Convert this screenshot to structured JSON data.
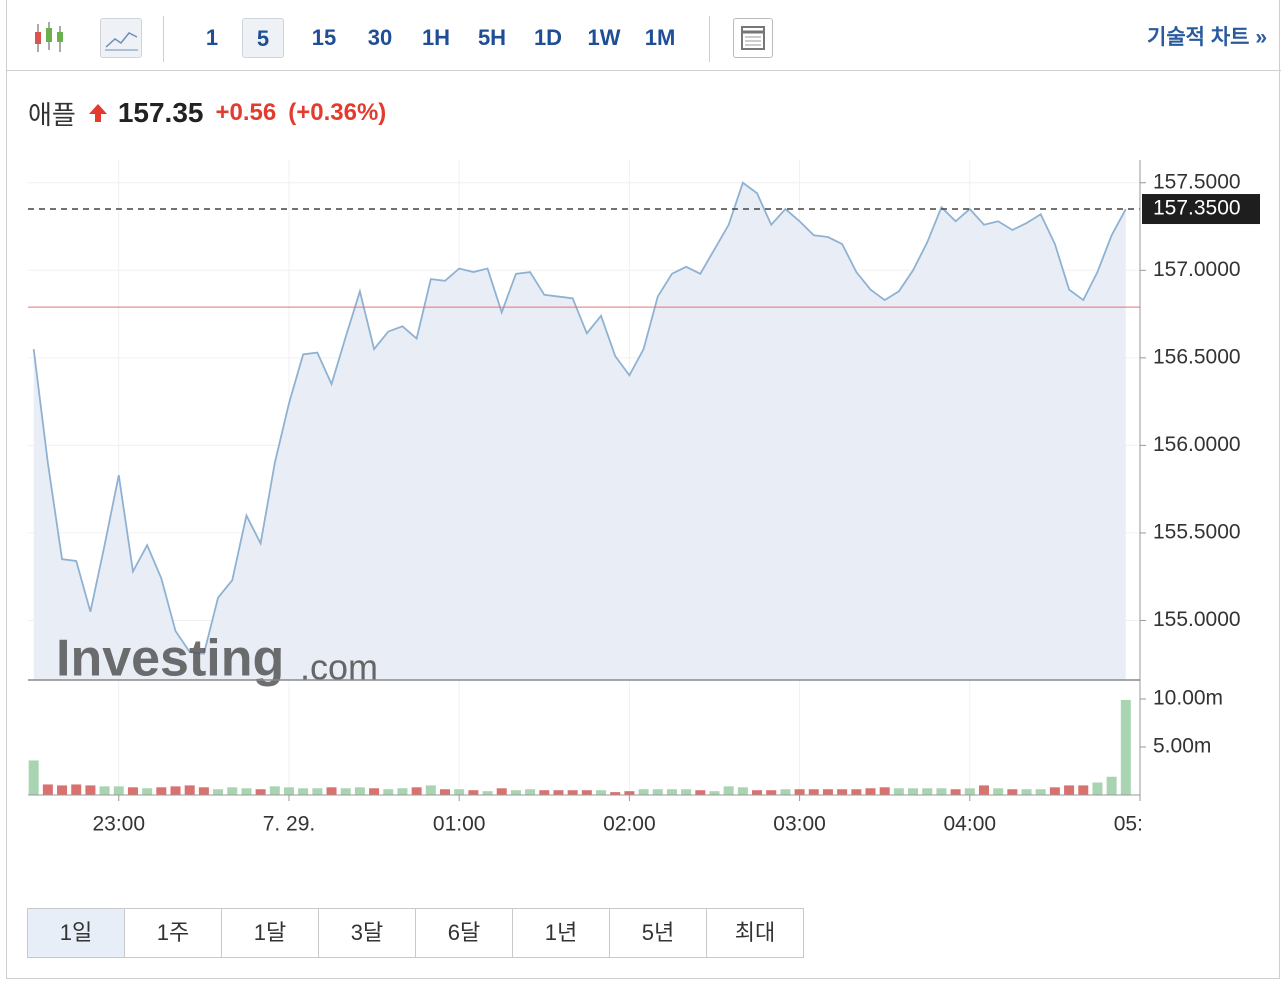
{
  "toolbar": {
    "intervals": [
      "1",
      "5",
      "15",
      "30",
      "1H",
      "5H",
      "1D",
      "1W",
      "1M"
    ],
    "technical_chart": "기술적 차트 »"
  },
  "quote": {
    "name": "애플",
    "price": "157.35",
    "change": "+0.56",
    "change_percent": "(+0.36%)"
  },
  "ranges": [
    "1일",
    "1주",
    "1달",
    "3달",
    "6달",
    "1년",
    "5년",
    "최대"
  ],
  "watermark": {
    "brand": "Investing",
    "suffix": ".com"
  },
  "chart_data": {
    "type": "area",
    "x": [
      "22:30",
      "22:35",
      "22:40",
      "22:45",
      "22:50",
      "22:55",
      "23:00",
      "23:05",
      "23:10",
      "23:15",
      "23:20",
      "23:25",
      "23:30",
      "23:35",
      "23:40",
      "23:45",
      "23:50",
      "23:55",
      "00:00",
      "00:05",
      "00:10",
      "00:15",
      "00:20",
      "00:25",
      "00:30",
      "00:35",
      "00:40",
      "00:45",
      "00:50",
      "00:55",
      "01:00",
      "01:05",
      "01:10",
      "01:15",
      "01:20",
      "01:25",
      "01:30",
      "01:35",
      "01:40",
      "01:45",
      "01:50",
      "01:55",
      "02:00",
      "02:05",
      "02:10",
      "02:15",
      "02:20",
      "02:25",
      "02:30",
      "02:35",
      "02:40",
      "02:45",
      "02:50",
      "02:55",
      "03:00",
      "03:05",
      "03:10",
      "03:15",
      "03:20",
      "03:25",
      "03:30",
      "03:35",
      "03:40",
      "03:45",
      "03:50",
      "03:55",
      "04:00",
      "04:05",
      "04:10",
      "04:15",
      "04:20",
      "04:25",
      "04:30",
      "04:35",
      "04:40",
      "04:45",
      "04:50",
      "04:55"
    ],
    "values": [
      156.55,
      155.9,
      155.35,
      155.34,
      155.05,
      155.43,
      155.83,
      155.28,
      155.43,
      155.24,
      154.94,
      154.82,
      154.81,
      155.13,
      155.23,
      155.6,
      155.44,
      155.9,
      156.24,
      156.52,
      156.53,
      156.35,
      156.62,
      156.88,
      156.55,
      156.65,
      156.68,
      156.61,
      156.95,
      156.94,
      157.01,
      156.99,
      157.01,
      156.76,
      156.98,
      156.99,
      156.86,
      156.85,
      156.84,
      156.64,
      156.74,
      156.51,
      156.4,
      156.55,
      156.85,
      156.98,
      157.02,
      156.98,
      157.12,
      157.26,
      157.5,
      157.44,
      157.26,
      157.35,
      157.28,
      157.2,
      157.19,
      157.15,
      156.99,
      156.89,
      156.83,
      156.88,
      157.0,
      157.16,
      157.36,
      157.28,
      157.35,
      157.26,
      157.28,
      157.23,
      157.27,
      157.32,
      157.15,
      156.89,
      156.83,
      156.99,
      157.2,
      157.35
    ],
    "color": "#8fb2d3",
    "fill_color": "#e9eef6",
    "xlim": [
      "22:28",
      "05:00"
    ],
    "xticks": [
      "23:00",
      {
        "value": "00:00",
        "label": "7. 29."
      },
      "01:00",
      "02:00",
      "03:00",
      "04:00",
      "05:00"
    ],
    "ylim": [
      154.66,
      157.63
    ],
    "yticks": [
      {
        "value": 155,
        "label": "155.0000"
      },
      {
        "value": 155.5,
        "label": "155.5000"
      },
      {
        "value": 156,
        "label": "156.0000"
      },
      {
        "value": 156.5,
        "label": "156.5000"
      },
      {
        "value": 157,
        "label": "157.0000"
      },
      {
        "value": 157.5,
        "label": "157.5000"
      }
    ],
    "current": {
      "value": 157.35,
      "label": "157.3500"
    },
    "prev_close": 156.79,
    "grid": true,
    "volume": {
      "values": [
        3.6,
        1.1,
        1.0,
        1.1,
        1.0,
        0.9,
        0.9,
        0.8,
        0.7,
        0.8,
        0.9,
        1.0,
        0.8,
        0.6,
        0.8,
        0.7,
        0.6,
        0.9,
        0.8,
        0.7,
        0.7,
        0.8,
        0.7,
        0.8,
        0.7,
        0.6,
        0.7,
        0.8,
        1.0,
        0.6,
        0.6,
        0.5,
        0.4,
        0.7,
        0.5,
        0.6,
        0.5,
        0.5,
        0.5,
        0.5,
        0.5,
        0.3,
        0.4,
        0.6,
        0.6,
        0.6,
        0.6,
        0.5,
        0.4,
        0.9,
        0.8,
        0.5,
        0.5,
        0.6,
        0.6,
        0.6,
        0.6,
        0.6,
        0.6,
        0.7,
        0.8,
        0.7,
        0.7,
        0.7,
        0.7,
        0.6,
        0.7,
        1.0,
        0.7,
        0.6,
        0.6,
        0.6,
        0.8,
        1.0,
        1.0,
        1.3,
        1.9,
        9.9
      ],
      "ylim": [
        0,
        11.77
      ],
      "yticks": [
        {
          "value": 5,
          "label": "5.00m"
        },
        {
          "value": 10,
          "label": "10.00m"
        }
      ],
      "up_color": "#a9d4b1",
      "down_color": "#d9716f"
    }
  }
}
